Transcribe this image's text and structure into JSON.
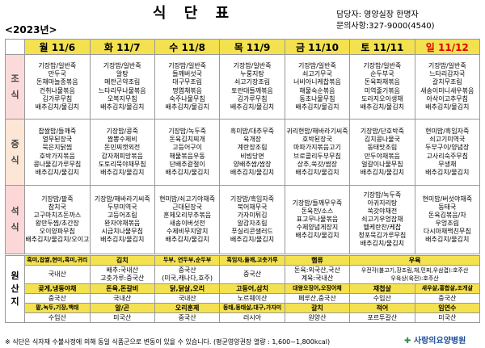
{
  "title": "식 단 표",
  "year": "<2023년>",
  "contact": {
    "manager": "담당자: 영양실장 한명자",
    "phone": "문의사항:327-9000(4540)"
  },
  "days": [
    "월 11/6",
    "화 11/7",
    "수 11/8",
    "목 11/9",
    "금 11/10",
    "토 11/11",
    "일 11/12"
  ],
  "meals": [
    {
      "label": "조식",
      "days": [
        [
          "기장밥/일반죽",
          "만두국",
          "돈채마늘종볶음",
          "건취나물볶음",
          "김가루무침",
          "배추김치/물김치"
        ],
        [
          "기장밥/일반죽",
          "알탕",
          "메란곤약조림",
          "느타리무나물볶음",
          "오복지무침",
          "배추김치/물김치"
        ],
        [
          "기장밥/일반죽",
          "들깨버섯국",
          "대구무조림",
          "명엽채볶음",
          "숙주나물무침",
          "배추김치/물김치"
        ],
        [
          "기장밥/일반죽",
          "누룽지탕",
          "쇠고기장조림",
          "토란대들깨볶음",
          "김가루무침",
          "배추김치/물김치"
        ],
        [
          "기장밥/일반죽",
          "쇠고기무국",
          "너비아니케찹볶음",
          "해물숙순볶음",
          "동초나물무침",
          "배추김치/물김치"
        ],
        [
          "기장밥/일반죽",
          "순두부국",
          "돈육파채볶음",
          "미역줄기볶음",
          "도라지오이생채",
          "배추김치/물김치"
        ],
        [
          "기장밥/일반죽",
          "느타리감자국",
          "갈치무조림",
          "새송이미니새우볶음",
          "아삭이고추무침",
          "배추김치/물김치"
        ]
      ]
    },
    {
      "label": "중식",
      "days": [
        [
          "찹쌀밥/들깨죽",
          "열무된장국",
          "묵은지닭찜",
          "호박가지볶음",
          "콩나물김가루무침",
          "배추김치/물김치"
        ],
        [
          "기장밥/콩죽",
          "짬뽕수제비",
          "돈민찌캣외전",
          "감자채피망볶음",
          "도토리묵야채무침",
          "배추김치/물김치"
        ],
        [
          "기장밥/녹두죽",
          "돈육김치찌개",
          "고등어구이",
          "해물볶음우동",
          "단배추겉절이",
          "배추김치/물김치"
        ],
        [
          "흑미밥/대추무죽",
          "육개장",
          "계란장조림",
          "비빔당면",
          "양배추쌈/쌈장",
          "배추김치/물김치"
        ],
        [
          "귀리현밥/해바라기씨죽",
          "호박된장국",
          "마파가지볶음고기",
          "브로콜리두부무침",
          "상추,쑥갓/쌈장",
          "배추김치/물김치"
        ],
        [
          "기장밥/단호박죽",
          "김치콩나물국",
          "동태맛조림",
          "만두야채볶음",
          "얼갈이나물무침",
          "배추김치/물김치"
        ],
        [
          "현미밥/흑임자죽",
          "쇠고기미역국",
          "두부구이/양념장",
          "고사리숙주무침",
          "무생채",
          "배추김치/물김치"
        ]
      ]
    },
    {
      "label": "석식",
      "days": [
        [
          "기장밥/팥죽",
          "참치국",
          "고구마치즈돈까스",
          "왕만두찜/초간장",
          "오이양파무침",
          "배추김치/물김치/오이고"
        ],
        [
          "기장밥/해바라기씨죽",
          "두부미역국",
          "고등어조림",
          "완자야채볶음",
          "시금치나물무침",
          "배추김치/물김치"
        ],
        [
          "현미밥/쇠고기야채죽",
          "근대된장국",
          "훈제오리부추볶음",
          "새송이버섯전",
          "수제비무지말치",
          "배추김치/물김치"
        ],
        [
          "기장밥/흑임자죽",
          "북어채무국",
          "가자미튀김",
          "알감자조림",
          "푸실리콘샐러드",
          "배추김치/물김치"
        ],
        [
          "기장밥/들깨무우죽",
          "돈육전/소스",
          "표고무나물볶음",
          "수제양념게장지",
          "배추김치/물김치"
        ],
        [
          "기장밥/녹두죽",
          "아귀지리탕",
          "쑥갓야채전",
          "쇠고기우엉잡채",
          "헬케란찬/케찹",
          "청포묵김가루무침",
          "배추김치/물김치"
        ],
        [
          "현미밥/버섯야채죽",
          "동태국",
          "돈육김볶음/차",
          "우엉조림",
          "다시마채맥친무침",
          "배추김치/물김치"
        ]
      ]
    }
  ],
  "origin_label": "원산지",
  "origin_rows": [
    {
      "h": [
        "흑미,찹쌀,현미,흑미,귀리",
        "김치",
        "두부, 연두부,순두부",
        "흑임자,들깨,고춧가루",
        "햄류",
        "우육"
      ],
      "v": [
        "국내산",
        "배추:국내산\n고춧가루:중국산",
        "중국산\n(미국,캐나다,호주)",
        "중국산",
        "돈육:외국산,국산\n계육:국내산",
        "우전각(불고기,장조림,채,민찌,우삼겹):호주산\n우육상(육전):호주산"
      ]
    },
    {
      "h": [
        "곶게,냉동야채",
        "돈육,돈갈비",
        "닭,닭살,오리",
        "고등어,삼치",
        "대왕오징어,오징어채",
        "재첩살",
        "새우살,홍합살,조개살"
      ],
      "v": [
        "중국산",
        "국내산",
        "국내산",
        "노르웨이산",
        "페루산,중국산",
        "수입산",
        "중국산"
      ]
    },
    {
      "h": [
        "팥,녹두,기장,백태",
        "알/곤",
        "오리훈제",
        "동태,동태살,대구,가자미",
        "갈치",
        "적어",
        "임연수"
      ],
      "v": [
        "수입산",
        "미국산",
        "중국산",
        "러시아",
        "원양산",
        "포르투갈산",
        "미국산"
      ]
    }
  ],
  "footnote": "※ 식단은 식자재 수불사정에 의해 동일 식품군으로 변동이 있을 수 있습니다. (평균영양권장 열량 : 1,600~1,800kcal)",
  "logo": "사랑의요양병원"
}
